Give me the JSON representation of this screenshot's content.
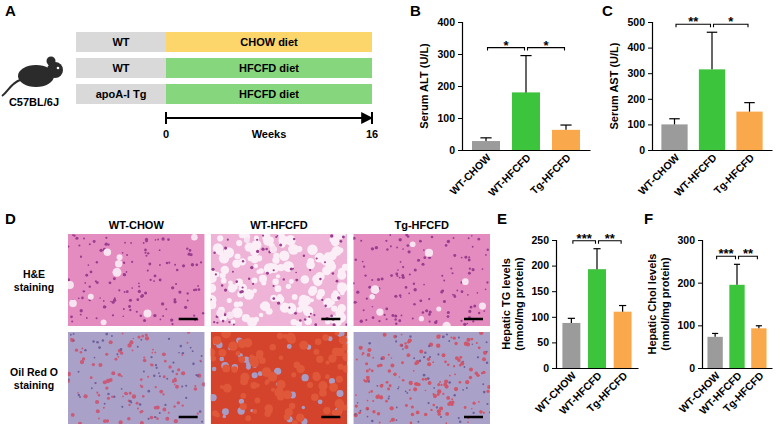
{
  "diagram": {
    "panel": "A",
    "strain": "C57BL/6J",
    "groups": [
      {
        "genotype": "WT",
        "diet": "CHOW diet",
        "color": "#fcd56b"
      },
      {
        "genotype": "WT",
        "diet": "HFCFD diet",
        "color": "#86d67e"
      },
      {
        "genotype": "apoA-I Tg",
        "diet": "HFCFD diet",
        "color": "#86d67e"
      }
    ],
    "timeline": {
      "start": 0,
      "end": 16,
      "label": "Weeks"
    }
  },
  "chart_data": [
    {
      "type": "bar",
      "panel": "B",
      "categories": [
        "WT-CHOW",
        "WT-HFCFD",
        "Tg-HFCFD"
      ],
      "values": [
        28,
        180,
        63
      ],
      "errors": [
        10,
        115,
        15
      ],
      "colors": [
        "#9b9b9b",
        "#3cc43c",
        "#f9a94b"
      ],
      "ylim": [
        0,
        400
      ],
      "yticks": [
        0,
        100,
        200,
        300,
        400
      ],
      "y_label": "Serum ALT (U/L)",
      "annotations": [
        {
          "from": 0,
          "to": 1,
          "text": "*"
        },
        {
          "from": 1,
          "to": 2,
          "text": "*"
        }
      ]
    },
    {
      "type": "bar",
      "panel": "C",
      "categories": [
        "WT-CHOW",
        "WT-HFCFD",
        "Tg-HFCFD"
      ],
      "values": [
        100,
        315,
        150
      ],
      "errors": [
        22,
        145,
        35
      ],
      "colors": [
        "#9b9b9b",
        "#3cc43c",
        "#f9a94b"
      ],
      "ylim": [
        0,
        500
      ],
      "yticks": [
        0,
        100,
        200,
        300,
        400,
        500
      ],
      "y_label": "Serum AST (U/L)",
      "annotations": [
        {
          "from": 0,
          "to": 1,
          "text": "**"
        },
        {
          "from": 1,
          "to": 2,
          "text": "*"
        }
      ]
    },
    {
      "type": "bar",
      "panel": "E",
      "categories": [
        "WT-CHOW",
        "WT-HFCFD",
        "Tg-HFCFD"
      ],
      "values": [
        88,
        193,
        110
      ],
      "errors": [
        9,
        40,
        12
      ],
      "colors": [
        "#9b9b9b",
        "#3cc43c",
        "#f9a94b"
      ],
      "ylim": [
        0,
        250
      ],
      "yticks": [
        0,
        50,
        100,
        150,
        200,
        250
      ],
      "y_label": "Hepatic TG levels (nmol/mg protein)",
      "annotations": [
        {
          "from": 0,
          "to": 1,
          "text": "***"
        },
        {
          "from": 1,
          "to": 2,
          "text": "**"
        }
      ]
    },
    {
      "type": "bar",
      "panel": "F",
      "categories": [
        "WT-CHOW",
        "WT-HFCFD",
        "Tg-HFCFD"
      ],
      "values": [
        73,
        195,
        93
      ],
      "errors": [
        8,
        48,
        6
      ],
      "colors": [
        "#9b9b9b",
        "#3cc43c",
        "#f9a94b"
      ],
      "ylim": [
        0,
        300
      ],
      "yticks": [
        0,
        100,
        200,
        300
      ],
      "y_label": "Hepatic Chol levels (nmol/mg protein)",
      "annotations": [
        {
          "from": 0,
          "to": 1,
          "text": "***"
        },
        {
          "from": 1,
          "to": 2,
          "text": "**"
        }
      ]
    }
  ],
  "images": {
    "panel": "D",
    "columns": [
      "WT-CHOW",
      "WT-HFCFD",
      "Tg-HFCFD"
    ],
    "rows": [
      "H&E staining",
      "Oil Red O staining"
    ]
  }
}
